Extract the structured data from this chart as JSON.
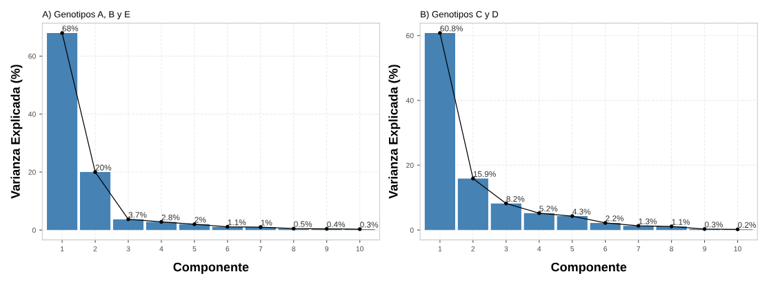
{
  "chart_data": [
    {
      "type": "bar",
      "title": "A) Genotipos A, B y E",
      "xlabel": "Componente",
      "ylabel": "Varianza Explicada (%)",
      "categories": [
        "1",
        "2",
        "3",
        "4",
        "5",
        "6",
        "7",
        "8",
        "9",
        "10"
      ],
      "ylim": [
        -3.4,
        71.4
      ],
      "yticks": [
        0,
        20,
        40,
        60
      ],
      "grid": true,
      "series": [
        {
          "color": "#4682b4",
          "values": [
            68,
            20,
            3.7,
            2.8,
            2,
            1.1,
            1,
            0.5,
            0.4,
            0.3
          ],
          "value_labels": [
            "68%",
            "20%",
            "3.7%",
            "2.8%",
            "2%",
            "1.1%",
            "1%",
            "0.5%",
            "0.4%",
            "0.3%"
          ]
        },
        {
          "type": "line",
          "color": "#000000",
          "marker": "circle",
          "line_style": "solid",
          "values": [
            68,
            20,
            3.7,
            2.8,
            2,
            1.1,
            1,
            0.5,
            0.4,
            0.3
          ]
        }
      ]
    },
    {
      "type": "bar",
      "title": "B) Genotipos C y D",
      "xlabel": "Componente",
      "ylabel": "Varianza Explicada (%)",
      "categories": [
        "1",
        "2",
        "3",
        "4",
        "5",
        "6",
        "7",
        "8",
        "9",
        "10"
      ],
      "ylim": [
        -3.04,
        63.84
      ],
      "yticks": [
        0,
        20,
        40,
        60
      ],
      "grid": true,
      "series": [
        {
          "color": "#4682b4",
          "values": [
            60.8,
            15.9,
            8.2,
            5.2,
            4.3,
            2.2,
            1.3,
            1.1,
            0.3,
            0.2
          ],
          "value_labels": [
            "60.8%",
            "15.9%",
            "8.2%",
            "5.2%",
            "4.3%",
            "2.2%",
            "1.3%",
            "1.1%",
            "0.3%",
            "0.2%"
          ]
        },
        {
          "type": "line",
          "color": "#000000",
          "marker": "circle",
          "line_style": "solid",
          "values": [
            60.8,
            15.9,
            8.2,
            5.2,
            4.3,
            2.2,
            1.3,
            1.1,
            0.3,
            0.2
          ]
        }
      ]
    }
  ]
}
